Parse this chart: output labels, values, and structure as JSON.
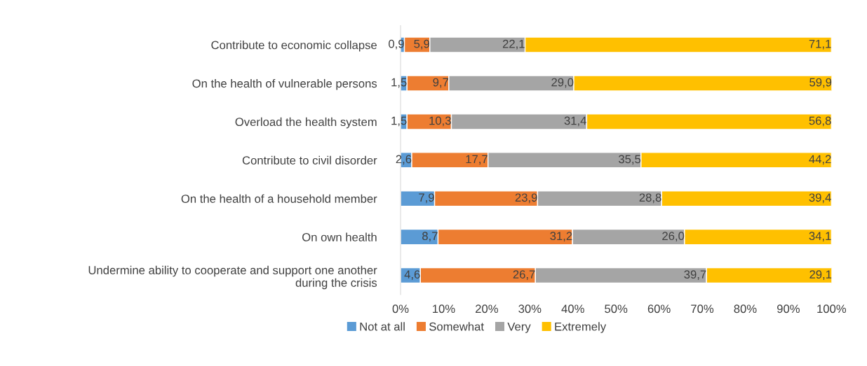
{
  "chart_data": {
    "type": "bar",
    "orientation": "horizontal",
    "stacked": true,
    "categories": [
      "Contribute to economic collapse",
      "On the health of vulnerable persons",
      "Overload the health system",
      "Contribute to civil disorder",
      "On the health of a household member",
      "On own health",
      "Undermine ability to cooperate and support one another\nduring the crisis"
    ],
    "series": [
      {
        "name": "Not at all",
        "color": "#5b9bd5",
        "values": [
          0.9,
          1.5,
          1.5,
          2.6,
          7.9,
          8.7,
          4.6
        ],
        "value_labels": [
          "0,9",
          "1,5",
          "1,5",
          "2,6",
          "7,9",
          "8,7",
          "4,6"
        ]
      },
      {
        "name": "Somewhat",
        "color": "#ed7d31",
        "values": [
          5.9,
          9.7,
          10.3,
          17.7,
          23.9,
          31.2,
          26.7
        ],
        "value_labels": [
          "5,9",
          "9,7",
          "10,3",
          "17,7",
          "23,9",
          "31,2",
          "26,7"
        ]
      },
      {
        "name": "Very",
        "color": "#a5a5a5",
        "values": [
          22.1,
          29.0,
          31.4,
          35.5,
          28.8,
          26.0,
          39.7
        ],
        "value_labels": [
          "22,1",
          "29,0",
          "31,4",
          "35,5",
          "28,8",
          "26,0",
          "39,7"
        ]
      },
      {
        "name": "Extremely",
        "color": "#ffc000",
        "values": [
          71.1,
          59.9,
          56.8,
          44.2,
          39.4,
          34.1,
          29.1
        ],
        "value_labels": [
          "71,1",
          "59,9",
          "56,8",
          "44,2",
          "39,4",
          "34,1",
          "29,1"
        ]
      }
    ],
    "xlim": [
      0,
      100
    ],
    "xticks": [
      {
        "value": 0,
        "label": "0%"
      },
      {
        "value": 10,
        "label": "10%"
      },
      {
        "value": 20,
        "label": "20%"
      },
      {
        "value": 30,
        "label": "30%"
      },
      {
        "value": 40,
        "label": "40%"
      },
      {
        "value": 50,
        "label": "50%"
      },
      {
        "value": 60,
        "label": "60%"
      },
      {
        "value": 70,
        "label": "70%"
      },
      {
        "value": 80,
        "label": "80%"
      },
      {
        "value": 90,
        "label": "90%"
      },
      {
        "value": 100,
        "label": "100%"
      }
    ],
    "grid": false,
    "legend": "bottom"
  }
}
